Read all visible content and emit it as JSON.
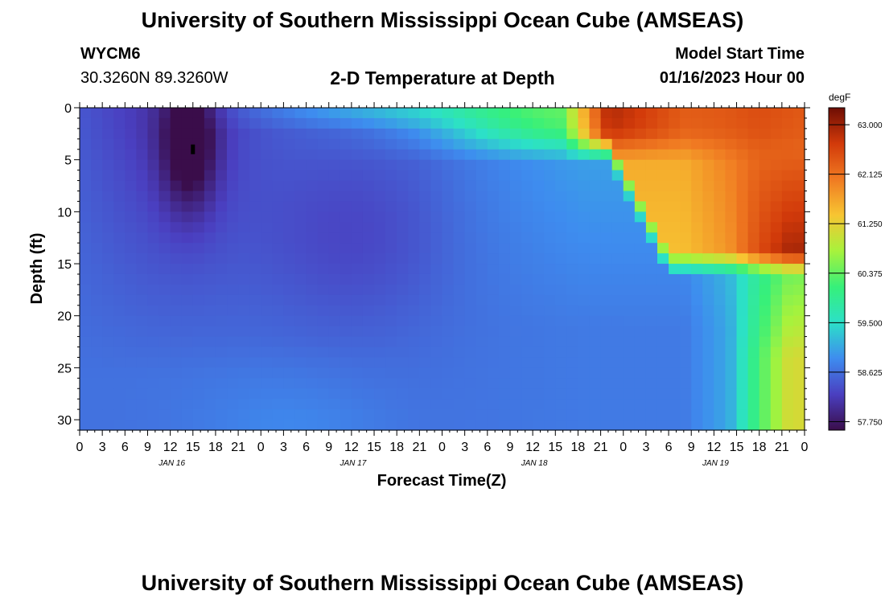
{
  "header": {
    "title": "University of Southern Mississippi Ocean Cube (AMSEAS)",
    "station": "WYCM6",
    "coordinates": "30.3260N  89.3260W",
    "subtitle": "2-D Temperature at Depth",
    "model_start_label": "Model Start Time",
    "model_start_value": "01/16/2023 Hour 00"
  },
  "footer": {
    "title": "University of Southern Mississippi Ocean Cube (AMSEAS)"
  },
  "chart_data": {
    "type": "heatmap",
    "title": "2-D Temperature at Depth",
    "xlabel": "Forecast Time(Z)",
    "ylabel": "Depth (ft)",
    "colorbar_unit": "degF",
    "xlim": [
      0,
      96
    ],
    "ylim": [
      31,
      0
    ],
    "x_tick_labels": [
      "0",
      "3",
      "6",
      "9",
      "12",
      "15",
      "18",
      "21",
      "0",
      "3",
      "6",
      "9",
      "12",
      "15",
      "18",
      "21",
      "0",
      "3",
      "6",
      "9",
      "12",
      "15",
      "18",
      "21",
      "0",
      "3",
      "6",
      "9",
      "12",
      "15",
      "18",
      "21",
      "0"
    ],
    "y_ticks": [
      0,
      5,
      10,
      15,
      20,
      25,
      30
    ],
    "date_labels": [
      {
        "text": "JAN 16",
        "hour": 12
      },
      {
        "text": "JAN 17",
        "hour": 36
      },
      {
        "text": "JAN 18",
        "hour": 60
      },
      {
        "text": "JAN 19",
        "hour": 84
      }
    ],
    "colorbar_ticks": [
      "63.000",
      "62.125",
      "61.250",
      "60.375",
      "59.500",
      "58.625",
      "57.750"
    ],
    "color_range": [
      57.6,
      63.3
    ],
    "colormap": [
      "#3a0d4a",
      "#4a3fc0",
      "#3e8cef",
      "#2ce0c8",
      "#36f07a",
      "#a8f23c",
      "#f7c532",
      "#f07a22",
      "#d23a0a",
      "#6e0d04"
    ],
    "marker": {
      "hour": 15,
      "depth": 4
    }
  }
}
